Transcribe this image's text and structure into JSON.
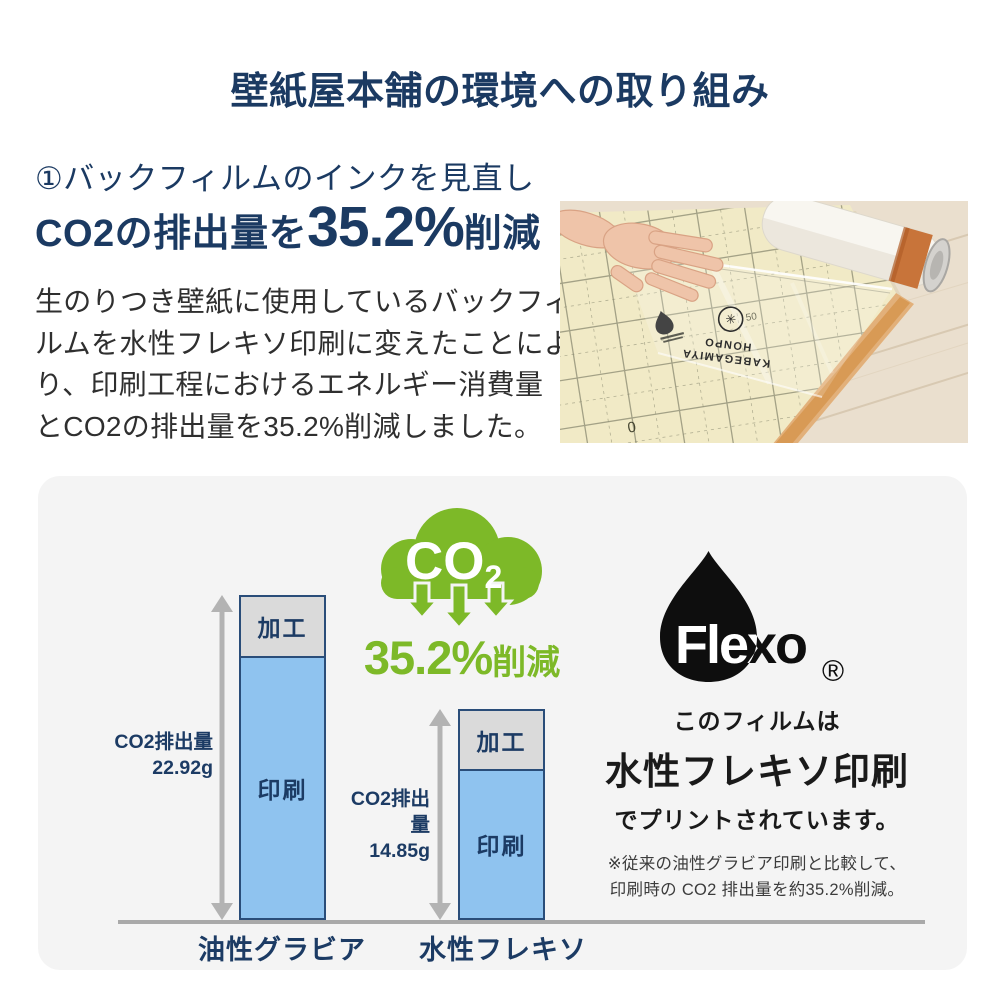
{
  "page": {
    "title": "壁紙屋本舗の環境への取り組み",
    "accent_navy": "#1B3A62",
    "accent_green": "#7DB928",
    "panel_bg": "#F4F4F4"
  },
  "intro": {
    "heading": "①バックフィルムのインクを見直し",
    "big_prefix": "CO2の排出量を",
    "big_value": "35.2%",
    "big_suffix": "削減",
    "paragraph_lines": [
      "生のりつき壁紙に使用しているバックフィ",
      "ルムを水性フレキソ印刷に変えたことによ",
      "り、印刷工程におけるエネルギー消費量",
      "とCO2の排出量を35.2%削減しました。"
    ]
  },
  "photo": {
    "film_brand_line1": "KABEGAMIYA",
    "film_brand_line2": "HONPO"
  },
  "chart_data": {
    "type": "bar",
    "stacked": true,
    "categories": [
      "油性グラビア",
      "水性フレキソ"
    ],
    "series": [
      {
        "name": "加工",
        "values": [
          4.3,
          4.2
        ],
        "color": "#DADADA"
      },
      {
        "name": "印刷",
        "values": [
          18.62,
          10.65
        ],
        "color": "#8FC3EF"
      }
    ],
    "totals": [
      22.92,
      14.85
    ],
    "unit": "g",
    "bar_annotations": [
      {
        "label": "CO2排出量",
        "value": "22.92g"
      },
      {
        "label": "CO2排出量",
        "value": "14.85g"
      }
    ],
    "ylim": [
      0,
      24
    ],
    "grid": false,
    "legend_position": "inside-bars"
  },
  "cloud": {
    "gas_label": "CO",
    "gas_subscript": "2",
    "reduction_value": "35.2%",
    "reduction_suffix": "削減"
  },
  "flexo": {
    "logo_text": "Flexo",
    "registered_mark": "®",
    "line1": "このフィルムは",
    "line2": "水性フレキソ印刷",
    "line3": "でプリントされています。",
    "note_line1": "※従来の油性グラビア印刷と比較して、",
    "note_line2": "印刷時の CO2 排出量を約35.2%削減。"
  }
}
